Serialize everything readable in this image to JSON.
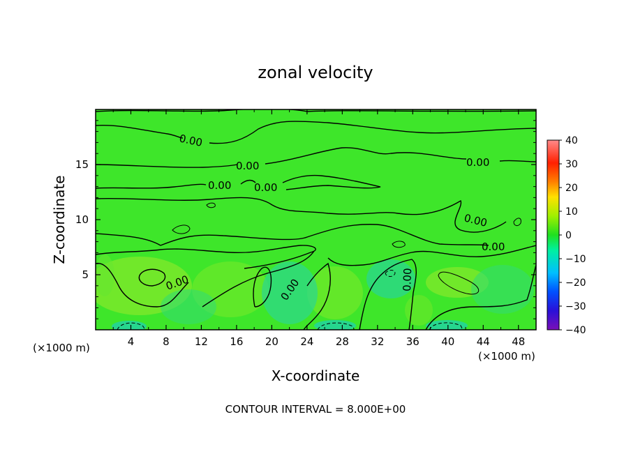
{
  "chart_data": {
    "type": "heatmap",
    "title": "zonal velocity",
    "xlabel": "X-coordinate",
    "ylabel": "Z-coordinate",
    "x_unit_left": "(×1000 m)",
    "x_unit_right": "(×1000 m)",
    "xlim": [
      0,
      50
    ],
    "ylim": [
      0,
      20
    ],
    "xticks": [
      4,
      8,
      12,
      16,
      20,
      24,
      28,
      32,
      36,
      40,
      44,
      48
    ],
    "yticks": [
      5,
      10,
      15
    ],
    "colorbar": {
      "range": [
        -40,
        40
      ],
      "ticks": [
        40,
        30,
        20,
        10,
        0,
        -10,
        -20,
        -30,
        -40
      ],
      "colors": [
        "#7a0fb8",
        "#2a10d8",
        "#0050ff",
        "#00bfff",
        "#00f0a0",
        "#20e020",
        "#a0f000",
        "#ffe000",
        "#ff8000",
        "#ff2000",
        "#ff8a8a"
      ]
    },
    "field_value_range": [
      -8,
      8
    ],
    "contour_interval_text": "CONTOUR INTERVAL = 8.000E+00",
    "contour_labels": [
      "0.00",
      "0.00",
      "0.00",
      "0.00",
      "0.00",
      "0.00",
      "0.00",
      "0.00",
      "0.00",
      "0.00"
    ]
  }
}
